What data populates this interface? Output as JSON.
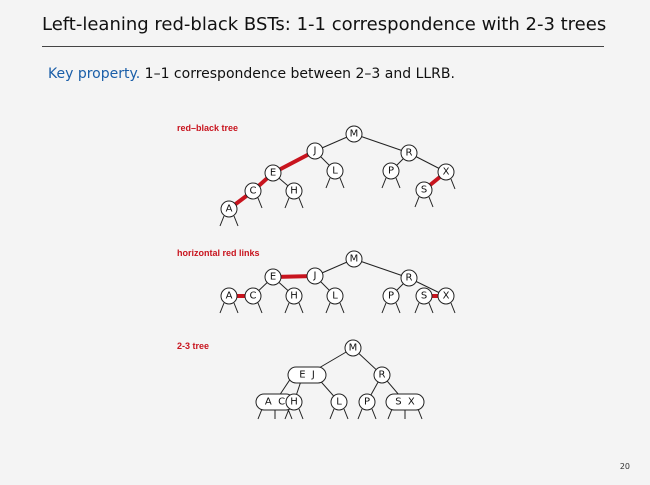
{
  "slide": {
    "title": "Left-leaning red-black BSTs:  1-1 correspondence with 2-3 trees",
    "key_label": "Key property.",
    "key_text": "  1–1 correspondence between 2–3 and LLRB.",
    "page_number": "20"
  },
  "sections": {
    "rb": {
      "label": "red–black tree"
    },
    "hz": {
      "label": "horizontal red links"
    },
    "t23": {
      "label": "2-3 tree"
    }
  },
  "nodes": {
    "M": "M",
    "J": "J",
    "L": "L",
    "E": "E",
    "H": "H",
    "C": "C",
    "A": "A",
    "R": "R",
    "P": "P",
    "X": "X",
    "S": "S",
    "EJ": "E  J",
    "AC": "A  C",
    "SX": "S  X"
  },
  "colors": {
    "red_link": "#c8141e",
    "key_property": "#1a5ea8",
    "label": "#c8141e"
  }
}
